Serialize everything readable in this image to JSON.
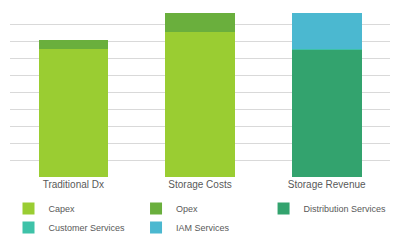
{
  "chart_data": {
    "type": "bar",
    "stacked": true,
    "grid": true,
    "legend": "bottom",
    "tick_labels": "x",
    "categories": [
      "Traditional Dx",
      "Storage Costs",
      "Storage Revenue"
    ],
    "series": [
      {
        "name": "Capex",
        "color": "#9acd32",
        "values": [
          7.6,
          8.6,
          0
        ]
      },
      {
        "name": "Opex",
        "color": "#6aaf3d",
        "values": [
          0.5,
          1.1,
          0
        ]
      },
      {
        "name": "Distribution Services",
        "color": "#33a36e",
        "values": [
          0,
          0,
          7.5
        ]
      },
      {
        "name": "Customer Services",
        "color": "#3ec2a8",
        "values": [
          0,
          0,
          0.1
        ]
      },
      {
        "name": "IAM Services",
        "color": "#4bb8d0",
        "values": [
          0,
          0,
          2.1
        ]
      }
    ],
    "ylim": [
      0,
      10
    ],
    "yticks": [
      0,
      1,
      2,
      3,
      4,
      5,
      6,
      7,
      8,
      9,
      10
    ]
  }
}
